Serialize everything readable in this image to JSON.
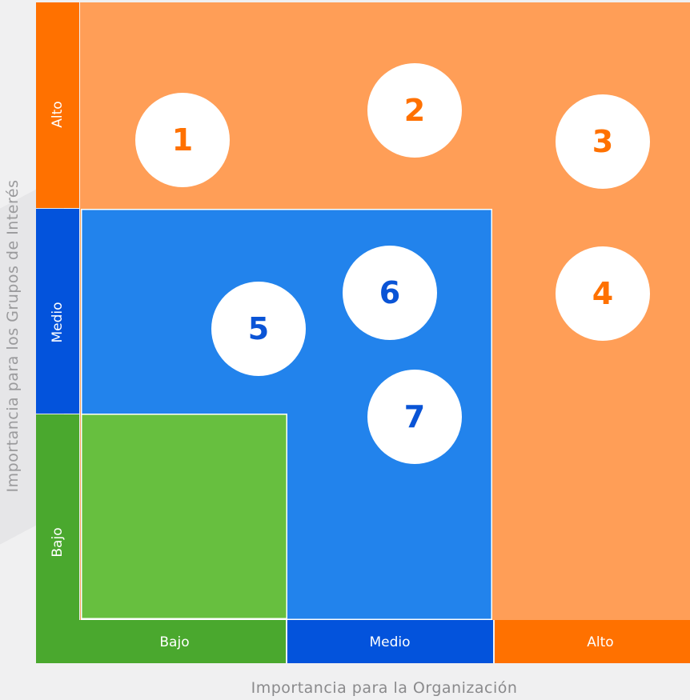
{
  "axes": {
    "y_title": "Importancia para los Grupos de Interés",
    "x_title": "Importancia para la Organización",
    "y_levels": [
      "Alto",
      "Medio",
      "Bajo"
    ],
    "x_levels": [
      "Bajo",
      "Medio",
      "Alto"
    ]
  },
  "colors": {
    "alto": "#ff7100",
    "medio": "#0353dc",
    "bajo": "#4aa82e",
    "zone_alto": "#ff9e57",
    "zone_medio": "#2283ec",
    "zone_bajo": "#67bf3f"
  },
  "topics": [
    {
      "label": "1",
      "zone": "alto"
    },
    {
      "label": "2",
      "zone": "alto"
    },
    {
      "label": "3",
      "zone": "alto"
    },
    {
      "label": "4",
      "zone": "alto"
    },
    {
      "label": "5",
      "zone": "medio"
    },
    {
      "label": "6",
      "zone": "medio"
    },
    {
      "label": "7",
      "zone": "medio"
    }
  ]
}
